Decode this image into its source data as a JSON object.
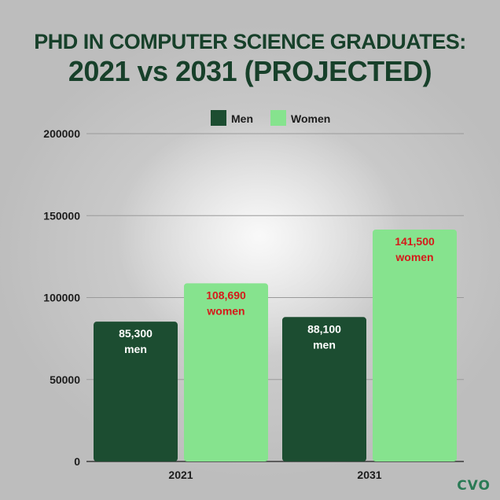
{
  "header": {
    "title_line1": "PHD IN COMPUTER SCIENCE GRADUATES:",
    "title_line2": "2021 vs 2031 (PROJECTED)"
  },
  "logo": {
    "text": "CVO"
  },
  "colors": {
    "men": "#1c4d31",
    "women": "#86e38e",
    "women_label": "#d51a1a",
    "men_label": "#ffffff",
    "title": "#17402a"
  },
  "chart_data": {
    "type": "bar",
    "title": "PHD IN COMPUTER SCIENCE GRADUATES: 2021 vs 2031 (PROJECTED)",
    "categories": [
      "2021",
      "2031"
    ],
    "series": [
      {
        "name": "Men",
        "values": [
          85300,
          88100
        ],
        "labels": [
          "85,300",
          "88,100"
        ],
        "label_unit": "men"
      },
      {
        "name": "Women",
        "values": [
          108690,
          141500
        ],
        "labels": [
          "108,690",
          "141,500"
        ],
        "label_unit": "women"
      }
    ],
    "ylim": [
      0,
      200000
    ],
    "yticks": [
      "0",
      "50000",
      "100000",
      "150000",
      "200000"
    ],
    "ytick_values": [
      0,
      50000,
      100000,
      150000,
      200000
    ],
    "grid": true,
    "legend": "top-center"
  }
}
